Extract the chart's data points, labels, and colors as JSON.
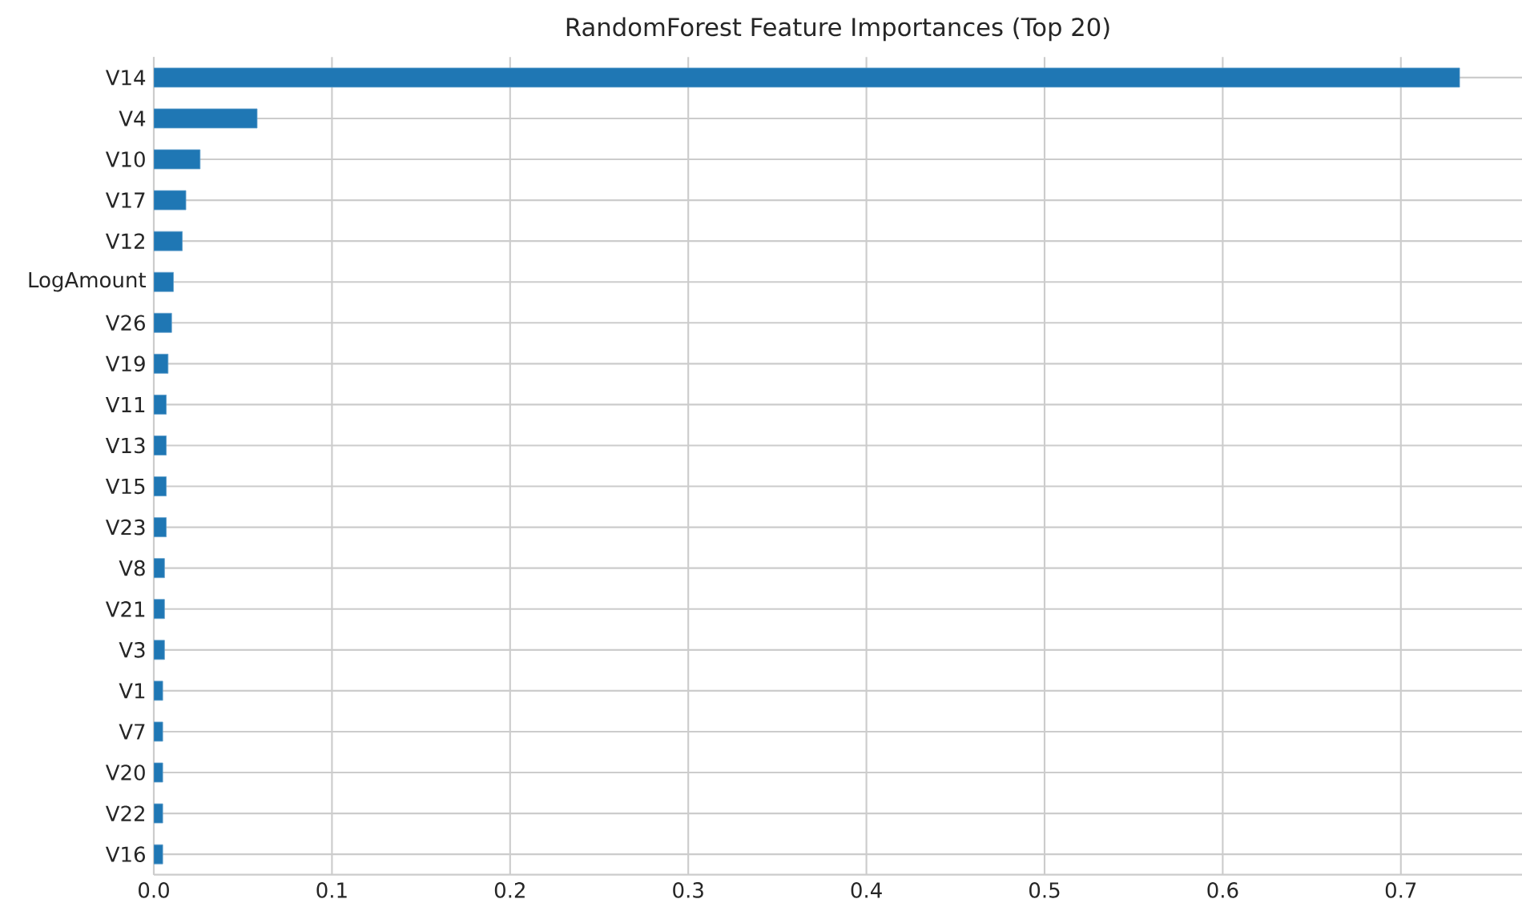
{
  "chart_data": {
    "type": "bar",
    "orientation": "horizontal",
    "title": "RandomForest Feature Importances (Top 20)",
    "categories": [
      "V14",
      "V4",
      "V10",
      "V17",
      "V12",
      "LogAmount",
      "V26",
      "V19",
      "V11",
      "V13",
      "V15",
      "V23",
      "V8",
      "V21",
      "V3",
      "V1",
      "V7",
      "V20",
      "V22",
      "V16"
    ],
    "values": [
      0.733,
      0.058,
      0.026,
      0.018,
      0.016,
      0.011,
      0.01,
      0.008,
      0.007,
      0.007,
      0.007,
      0.007,
      0.006,
      0.006,
      0.006,
      0.005,
      0.005,
      0.005,
      0.005,
      0.005
    ],
    "color": "#1f77b4",
    "xlim": [
      0,
      0.768
    ],
    "xticks": [
      {
        "value": 0,
        "label": "0.0"
      },
      0.1,
      0.2,
      0.3,
      0.4,
      0.5,
      0.6,
      0.7
    ],
    "grid": true
  }
}
